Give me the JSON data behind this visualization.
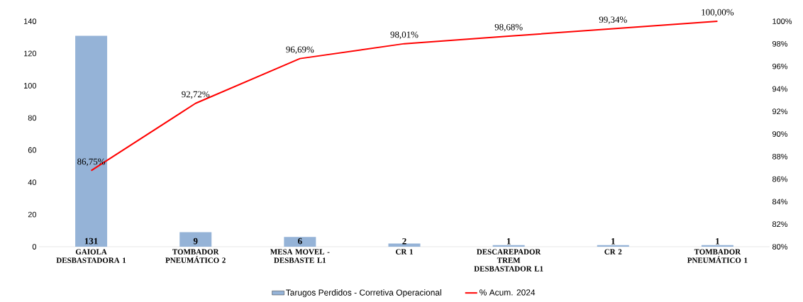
{
  "chart_data": {
    "type": "bar",
    "categories": [
      "GAIOLA DESBASTADORA 1",
      "TOMBADOR PNEUMÁTICO 2",
      "MESA MOVEL - DESBASTE L1",
      "CR 1",
      "DESCAREPADOR TREM DESBASTADOR L1",
      "CR 2",
      "TOMBADOR PNEUMÁTICO 1"
    ],
    "series": [
      {
        "name": "Tarugos Perdidos - Corretiva Operacional",
        "color": "#95b3d7",
        "values": [
          131,
          9,
          6,
          2,
          1,
          1,
          1
        ],
        "value_labels": [
          "131",
          "9",
          "6",
          "2",
          "1",
          "1",
          "1"
        ]
      },
      {
        "name": "% Acum. 2024",
        "type": "line",
        "axis": "y2",
        "color": "#ff0000",
        "values": [
          86.75,
          92.72,
          96.69,
          98.01,
          98.68,
          99.34,
          100.0
        ],
        "value_labels": [
          "86,75%",
          "92,72%",
          "96,69%",
          "98,01%",
          "98,68%",
          "99,34%",
          "100,00%"
        ]
      }
    ],
    "ylim": [
      0,
      140
    ],
    "yticks": [
      0,
      20,
      40,
      60,
      80,
      100,
      120,
      140
    ],
    "y2lim": [
      80,
      100
    ],
    "y2ticks": [
      {
        "value": 80,
        "label": "80%"
      },
      {
        "value": 82,
        "label": "82%"
      },
      {
        "value": 84,
        "label": "84%"
      },
      {
        "value": 86,
        "label": "86%"
      },
      {
        "value": 88,
        "label": "88%"
      },
      {
        "value": 90,
        "label": "90%"
      },
      {
        "value": 92,
        "label": "92%"
      },
      {
        "value": 94,
        "label": "94%"
      },
      {
        "value": 96,
        "label": "96%"
      },
      {
        "value": 98,
        "label": "98%"
      },
      {
        "value": 100,
        "label": "100%"
      }
    ],
    "legend": "bottom",
    "grid": false,
    "marker": "none",
    "line_style": "solid"
  }
}
